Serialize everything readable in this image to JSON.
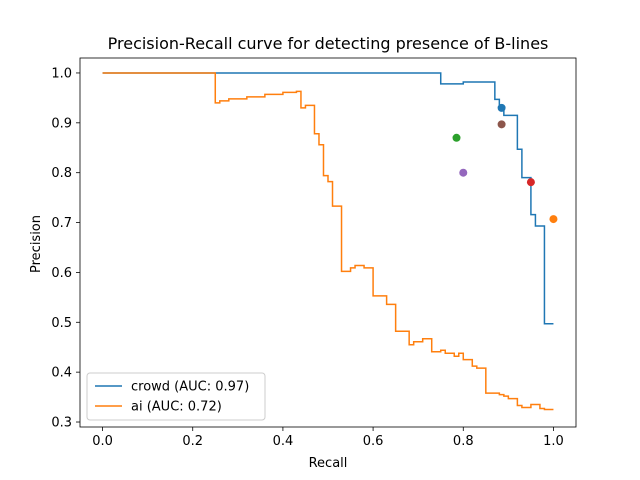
{
  "chart_data": {
    "type": "line",
    "title": "Precision-Recall curve for detecting presence of B-lines",
    "xlabel": "Recall",
    "ylabel": "Precision",
    "xlim": [
      -0.05,
      1.05
    ],
    "ylim": [
      0.29,
      1.03
    ],
    "xticks": [
      0.0,
      0.2,
      0.4,
      0.6,
      0.8,
      1.0
    ],
    "xtick_labels": [
      "0.0",
      "0.2",
      "0.4",
      "0.6",
      "0.8",
      "1.0"
    ],
    "yticks": [
      0.3,
      0.4,
      0.5,
      0.6,
      0.7,
      0.8,
      0.9,
      1.0
    ],
    "ytick_labels": [
      "0.3",
      "0.4",
      "0.5",
      "0.6",
      "0.7",
      "0.8",
      "0.9",
      "1.0"
    ],
    "grid": false,
    "legend_position": "lower-left",
    "series": [
      {
        "name": "crowd (AUC: 0.97)",
        "color": "#1f77b4",
        "style": "step",
        "x": [
          0.0,
          0.75,
          0.75,
          0.8,
          0.8,
          0.87,
          0.87,
          0.88,
          0.88,
          0.89,
          0.89,
          0.92,
          0.92,
          0.93,
          0.93,
          0.95,
          0.95,
          0.96,
          0.96,
          0.98,
          0.98,
          1.0
        ],
        "y": [
          1.0,
          1.0,
          0.978,
          0.978,
          0.982,
          0.982,
          0.947,
          0.947,
          0.932,
          0.932,
          0.915,
          0.915,
          0.847,
          0.847,
          0.79,
          0.79,
          0.716,
          0.716,
          0.693,
          0.693,
          0.497,
          0.497
        ]
      },
      {
        "name": "ai (AUC: 0.72)",
        "color": "#ff7f0e",
        "style": "step",
        "x": [
          0.0,
          0.25,
          0.25,
          0.26,
          0.26,
          0.28,
          0.28,
          0.32,
          0.32,
          0.36,
          0.36,
          0.4,
          0.4,
          0.43,
          0.43,
          0.44,
          0.44,
          0.45,
          0.45,
          0.47,
          0.47,
          0.48,
          0.48,
          0.49,
          0.49,
          0.5,
          0.5,
          0.51,
          0.51,
          0.53,
          0.53,
          0.55,
          0.55,
          0.56,
          0.56,
          0.58,
          0.58,
          0.6,
          0.6,
          0.63,
          0.63,
          0.65,
          0.65,
          0.68,
          0.68,
          0.69,
          0.69,
          0.71,
          0.71,
          0.73,
          0.73,
          0.75,
          0.75,
          0.76,
          0.76,
          0.78,
          0.78,
          0.79,
          0.79,
          0.8,
          0.8,
          0.82,
          0.82,
          0.83,
          0.83,
          0.85,
          0.85,
          0.88,
          0.88,
          0.89,
          0.89,
          0.9,
          0.9,
          0.92,
          0.92,
          0.93,
          0.93,
          0.95,
          0.95,
          0.97,
          0.97,
          0.98,
          0.98,
          1.0
        ],
        "y": [
          1.0,
          1.0,
          0.94,
          0.94,
          0.944,
          0.944,
          0.948,
          0.948,
          0.952,
          0.952,
          0.957,
          0.957,
          0.961,
          0.961,
          0.963,
          0.963,
          0.93,
          0.93,
          0.935,
          0.935,
          0.878,
          0.878,
          0.856,
          0.856,
          0.794,
          0.794,
          0.782,
          0.782,
          0.733,
          0.733,
          0.602,
          0.602,
          0.609,
          0.609,
          0.614,
          0.614,
          0.609,
          0.609,
          0.553,
          0.553,
          0.536,
          0.536,
          0.482,
          0.482,
          0.455,
          0.455,
          0.461,
          0.461,
          0.467,
          0.467,
          0.441,
          0.441,
          0.444,
          0.444,
          0.438,
          0.438,
          0.432,
          0.432,
          0.438,
          0.438,
          0.425,
          0.425,
          0.412,
          0.412,
          0.408,
          0.408,
          0.358,
          0.358,
          0.355,
          0.355,
          0.352,
          0.352,
          0.347,
          0.347,
          0.333,
          0.333,
          0.329,
          0.329,
          0.335,
          0.335,
          0.327,
          0.327,
          0.325,
          0.325
        ]
      }
    ],
    "points": [
      {
        "x": 0.885,
        "y": 0.93,
        "color": "#1f77b4"
      },
      {
        "x": 1.0,
        "y": 0.707,
        "color": "#ff7f0e"
      },
      {
        "x": 0.785,
        "y": 0.87,
        "color": "#2ca02c"
      },
      {
        "x": 0.95,
        "y": 0.781,
        "color": "#d62728"
      },
      {
        "x": 0.8,
        "y": 0.8,
        "color": "#9467bd"
      },
      {
        "x": 0.885,
        "y": 0.897,
        "color": "#8c564b"
      }
    ]
  }
}
